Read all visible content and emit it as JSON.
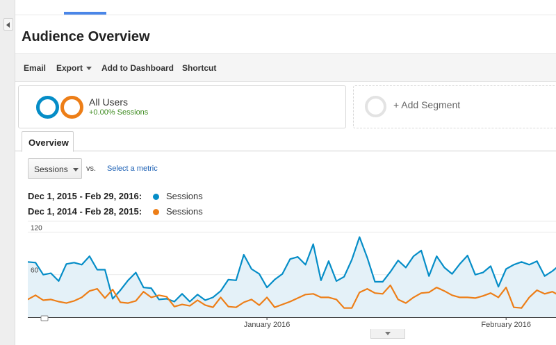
{
  "page": {
    "title": "Audience Overview"
  },
  "toolbar": {
    "email": "Email",
    "export": "Export",
    "add_to_dashboard": "Add to Dashboard",
    "shortcut": "Shortcut"
  },
  "segments": {
    "primary": {
      "name": "All Users",
      "subtitle": "+0.00% Sessions",
      "colors": [
        "#058dc7",
        "#ed7e17"
      ]
    },
    "add_label": "+ Add Segment"
  },
  "tabs": {
    "overview": "Overview"
  },
  "metric_picker": {
    "selected": "Sessions",
    "vs": "vs.",
    "select_metric": "Select a metric"
  },
  "legend": [
    {
      "range": "Dec 1, 2015 - Feb 29, 2016:",
      "series": "Sessions",
      "color": "#058dc7"
    },
    {
      "range": "Dec 1, 2014 - Feb 28, 2015:",
      "series": "Sessions",
      "color": "#ed7e17"
    }
  ],
  "chart_data": {
    "type": "area",
    "y_tick_labels": [
      "120",
      "60"
    ],
    "ylim": [
      0,
      134
    ],
    "x_tick_labels": [
      {
        "label": "January 2016",
        "day_index": 31
      },
      {
        "label": "February 2016",
        "day_index": 62
      }
    ],
    "grid": true,
    "series": [
      {
        "name": "Sessions",
        "period": "Dec 1, 2015 - Feb 29, 2016",
        "color": "#058dc7",
        "fill": "#e4f1f8",
        "values": [
          78,
          77,
          60,
          62,
          51,
          75,
          77,
          74,
          86,
          67,
          67,
          26,
          38,
          52,
          63,
          42,
          41,
          25,
          26,
          22,
          33,
          22,
          32,
          24,
          28,
          37,
          53,
          52,
          88,
          68,
          61,
          42,
          53,
          61,
          82,
          85,
          74,
          103,
          52,
          79,
          51,
          57,
          81,
          113,
          84,
          50,
          50,
          64,
          80,
          70,
          86,
          94,
          58,
          86,
          70,
          61,
          75,
          87,
          60,
          63,
          72,
          43,
          68,
          74,
          78,
          74,
          79,
          58,
          65,
          74
        ]
      },
      {
        "name": "Sessions",
        "period": "Dec 1, 2014 - Feb 28, 2015",
        "color": "#ed7e17",
        "fill": "none",
        "values": [
          25,
          31,
          24,
          25,
          22,
          20,
          23,
          28,
          37,
          40,
          27,
          39,
          21,
          20,
          23,
          36,
          28,
          31,
          29,
          15,
          18,
          16,
          24,
          17,
          14,
          28,
          15,
          14,
          21,
          25,
          17,
          28,
          14,
          18,
          22,
          27,
          32,
          33,
          28,
          28,
          25,
          13,
          13,
          35,
          40,
          34,
          33,
          45,
          25,
          20,
          28,
          34,
          35,
          42,
          37,
          31,
          28,
          28,
          27,
          30,
          34,
          28,
          42,
          14,
          13,
          28,
          38,
          33,
          36,
          30
        ]
      }
    ]
  }
}
